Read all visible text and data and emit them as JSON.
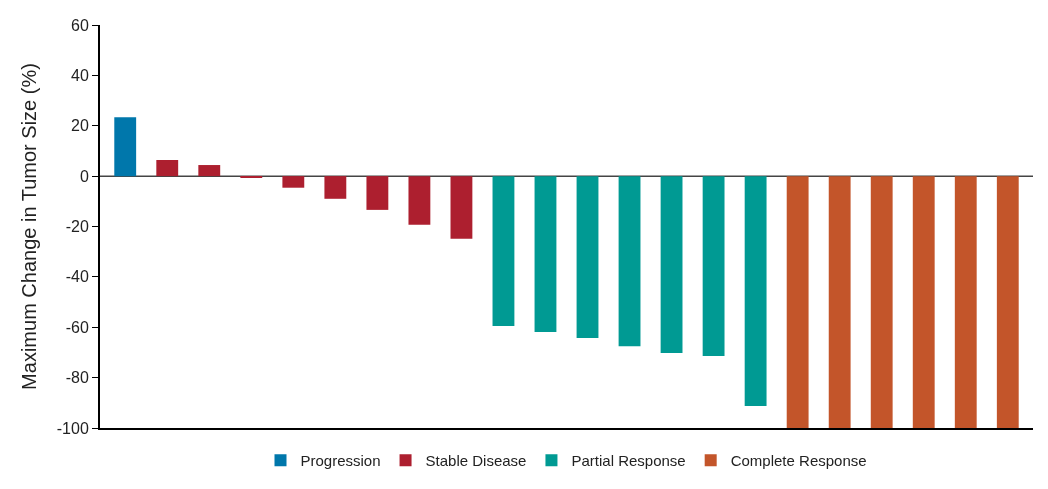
{
  "chart_data": {
    "type": "bar",
    "ylabel": "Maximum Change in Tumor Size (%)",
    "categories": [
      null,
      null,
      null,
      null,
      null,
      null,
      null,
      null,
      null,
      null,
      null,
      null,
      null,
      null,
      null,
      null,
      null,
      null,
      null,
      null,
      null,
      null
    ],
    "series": [
      {
        "name": "Progression",
        "color": "#0077ab",
        "values": [
          23.4,
          null,
          null,
          null,
          null,
          null,
          null,
          null,
          null,
          null,
          null,
          null,
          null,
          null,
          null,
          null,
          null,
          null,
          null,
          null,
          null,
          null
        ]
      },
      {
        "name": "Stable Disease",
        "color": "#ad1f2f",
        "values": [
          null,
          6.4,
          4.4,
          -0.7,
          -4.6,
          -9,
          -13.4,
          -19.3,
          -24.9,
          null,
          null,
          null,
          null,
          null,
          null,
          null,
          null,
          null,
          null,
          null,
          null,
          null
        ]
      },
      {
        "name": "Partial Response",
        "color": "#009a93",
        "values": [
          null,
          null,
          null,
          null,
          null,
          null,
          null,
          null,
          null,
          -59.5,
          -61.9,
          -64.3,
          -67.5,
          -70.2,
          -71.4,
          -91.3,
          null,
          null,
          null,
          null,
          null,
          null
        ]
      },
      {
        "name": "Complete Response",
        "color": "#c3552a",
        "values": [
          null,
          null,
          null,
          null,
          null,
          null,
          null,
          null,
          null,
          null,
          null,
          null,
          null,
          null,
          null,
          null,
          -100,
          -100,
          -100,
          -100,
          -100,
          -100
        ]
      }
    ],
    "ylim": [
      -100,
      60
    ],
    "yticks": [
      -100,
      -80,
      -60,
      -40,
      -20,
      0,
      20,
      40,
      60
    ],
    "ref_lines": [
      {
        "axis": "y",
        "value": 0,
        "color": "#444444"
      }
    ],
    "tick_labels": "y",
    "legend": "bottom"
  }
}
